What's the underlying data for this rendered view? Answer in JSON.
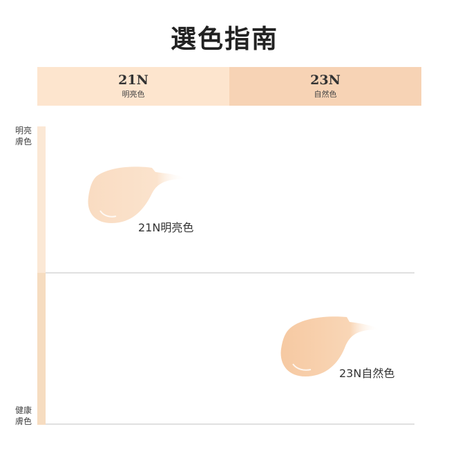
{
  "title": "選色指南",
  "columns": [
    {
      "code": "21N",
      "name": "明亮色",
      "color": "#fde5ce"
    },
    {
      "code": "23N",
      "name": "自然色",
      "color": "#f7d3b5"
    }
  ],
  "rows": [
    {
      "label_line1": "明亮",
      "label_line2": "膚色",
      "color": "#fbe8d5"
    },
    {
      "label_line1": "健康",
      "label_line2": "膚色",
      "color": "#f6dcc0"
    }
  ],
  "swatches": [
    {
      "label": "21N明亮色",
      "color": "#fbe0c8"
    },
    {
      "label": "23N自然色",
      "color": "#f8d1ad"
    }
  ]
}
